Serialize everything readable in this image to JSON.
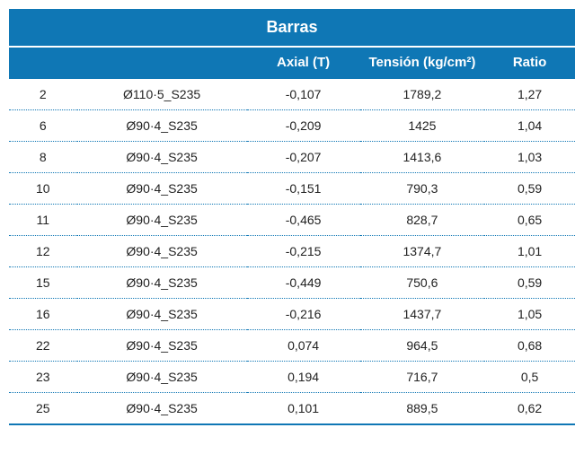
{
  "table": {
    "title": "Barras",
    "headers": {
      "col1": "",
      "col2": "",
      "axial": "Axial (T)",
      "tension": "Tensión (kg/cm²)",
      "ratio": "Ratio"
    },
    "rows": [
      {
        "id": "2",
        "profile": "Ø110·5_S235",
        "axial": "-0,107",
        "tension": "1789,2",
        "ratio": "1,27"
      },
      {
        "id": "6",
        "profile": "Ø90·4_S235",
        "axial": "-0,209",
        "tension": "1425",
        "ratio": "1,04"
      },
      {
        "id": "8",
        "profile": "Ø90·4_S235",
        "axial": "-0,207",
        "tension": "1413,6",
        "ratio": "1,03"
      },
      {
        "id": "10",
        "profile": "Ø90·4_S235",
        "axial": "-0,151",
        "tension": "790,3",
        "ratio": "0,59"
      },
      {
        "id": "11",
        "profile": "Ø90·4_S235",
        "axial": "-0,465",
        "tension": "828,7",
        "ratio": "0,65"
      },
      {
        "id": "12",
        "profile": "Ø90·4_S235",
        "axial": "-0,215",
        "tension": "1374,7",
        "ratio": "1,01"
      },
      {
        "id": "15",
        "profile": "Ø90·4_S235",
        "axial": "-0,449",
        "tension": "750,6",
        "ratio": "0,59"
      },
      {
        "id": "16",
        "profile": "Ø90·4_S235",
        "axial": "-0,216",
        "tension": "1437,7",
        "ratio": "1,05"
      },
      {
        "id": "22",
        "profile": "Ø90·4_S235",
        "axial": "0,074",
        "tension": "964,5",
        "ratio": "0,68"
      },
      {
        "id": "23",
        "profile": "Ø90·4_S235",
        "axial": "0,194",
        "tension": "716,7",
        "ratio": "0,5"
      },
      {
        "id": "25",
        "profile": "Ø90·4_S235",
        "axial": "0,101",
        "tension": "889,5",
        "ratio": "0,62"
      }
    ],
    "colors": {
      "header_bg": "#0f77b5",
      "header_fg": "#ffffff",
      "rule": "#0f77b5",
      "dotted": "#0f77b5",
      "body_bg": "#ffffff",
      "text": "#222222"
    },
    "fonts": {
      "title_size_pt": 14,
      "header_size_pt": 11,
      "body_size_pt": 10
    }
  }
}
